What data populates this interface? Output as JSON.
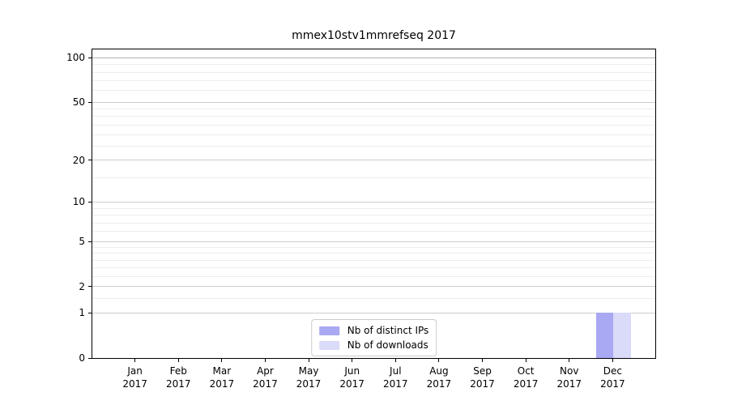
{
  "chart_data": {
    "type": "bar",
    "title": "mmex10stv1mmrefseq 2017",
    "categories": [
      "Jan",
      "Feb",
      "Mar",
      "Apr",
      "May",
      "Jun",
      "Jul",
      "Aug",
      "Sep",
      "Oct",
      "Nov",
      "Dec"
    ],
    "category_year": "2017",
    "series": [
      {
        "name": "Nb of distinct IPs",
        "color": "#a8a8f3",
        "values": [
          0,
          0,
          0,
          0,
          0,
          0,
          0,
          0,
          0,
          0,
          0,
          1
        ]
      },
      {
        "name": "Nb of downloads",
        "color": "#dadaf9",
        "values": [
          0,
          0,
          0,
          0,
          0,
          0,
          0,
          0,
          0,
          0,
          0,
          1
        ]
      }
    ],
    "xlabel": "",
    "ylabel": "",
    "yscale": "log1p",
    "ylim": [
      0,
      114
    ],
    "y_ticks": [
      0,
      1,
      2,
      5,
      10,
      20,
      50,
      100
    ],
    "y_minor_gridlines": [
      1.5,
      2.5,
      3,
      3.5,
      4,
      4.5,
      6,
      7,
      8,
      9,
      15,
      25,
      30,
      35,
      40,
      45,
      60,
      70,
      80,
      90
    ],
    "grid": "horizontal",
    "legend_position": "lower center",
    "colors": {
      "grid_major": "#cccccc",
      "grid_minor": "#ededed",
      "grid_top": "#b0b0b0",
      "axis": "#000000",
      "text": "#000000"
    }
  }
}
